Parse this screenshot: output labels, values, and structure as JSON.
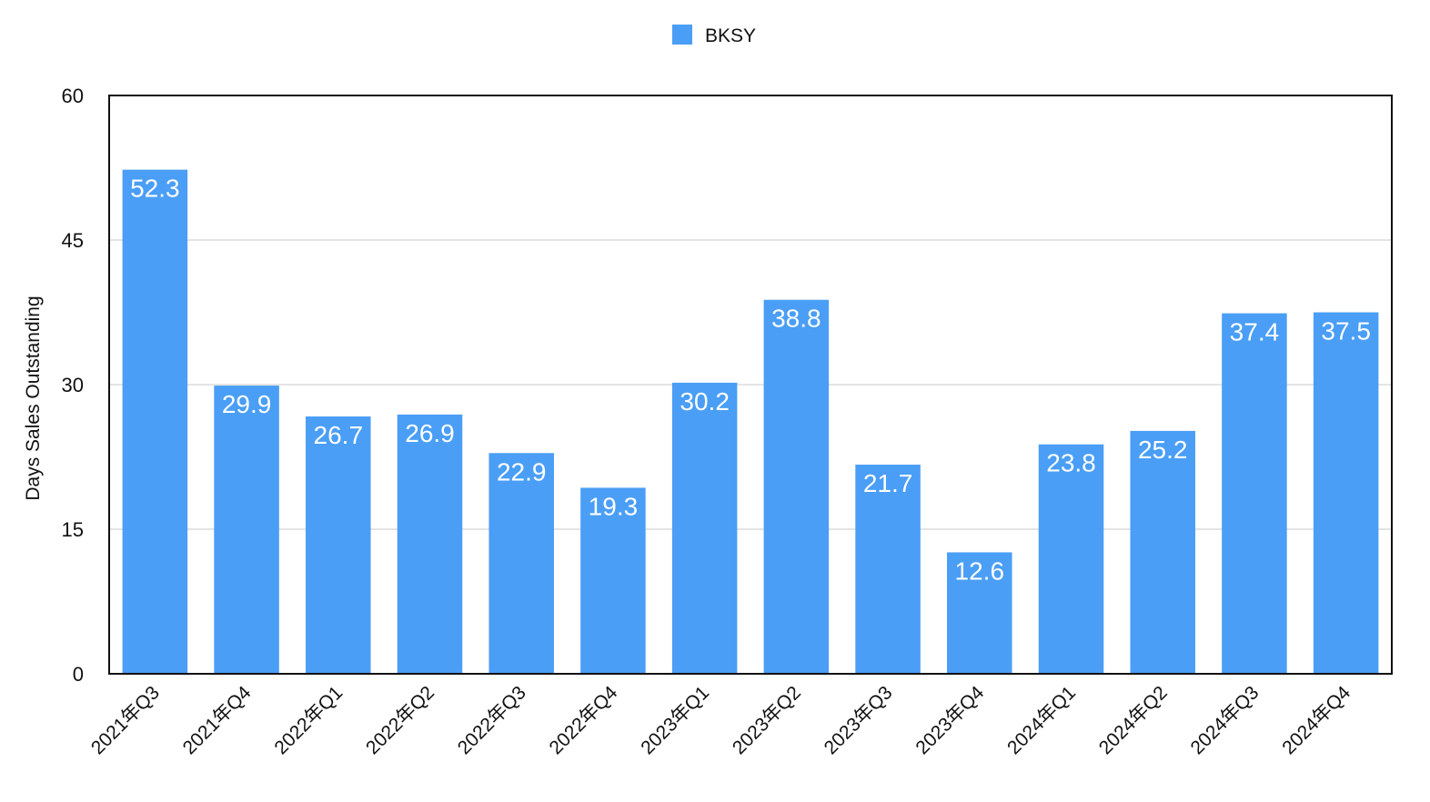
{
  "chart_data": {
    "type": "bar",
    "categories": [
      "2021年Q3",
      "2021年Q4",
      "2022年Q1",
      "2022年Q2",
      "2022年Q3",
      "2022年Q4",
      "2023年Q1",
      "2023年Q2",
      "2023年Q3",
      "2023年Q4",
      "2024年Q1",
      "2024年Q2",
      "2024年Q3",
      "2024年Q4"
    ],
    "series": [
      {
        "name": "BKSY",
        "values": [
          52.3,
          29.9,
          26.7,
          26.9,
          22.9,
          19.3,
          30.2,
          38.8,
          21.7,
          12.6,
          23.8,
          25.2,
          37.4,
          37.5
        ]
      }
    ],
    "title": "",
    "xlabel": "",
    "ylabel": "Days Sales Outstanding",
    "ylim": [
      0,
      60
    ],
    "yticks": [
      0,
      15,
      30,
      45,
      60
    ],
    "grid": true,
    "legend_position": "top-center",
    "colors": {
      "bar": "#4a9ef5",
      "grid": "#c8c8c8",
      "axis": "#111111"
    }
  }
}
